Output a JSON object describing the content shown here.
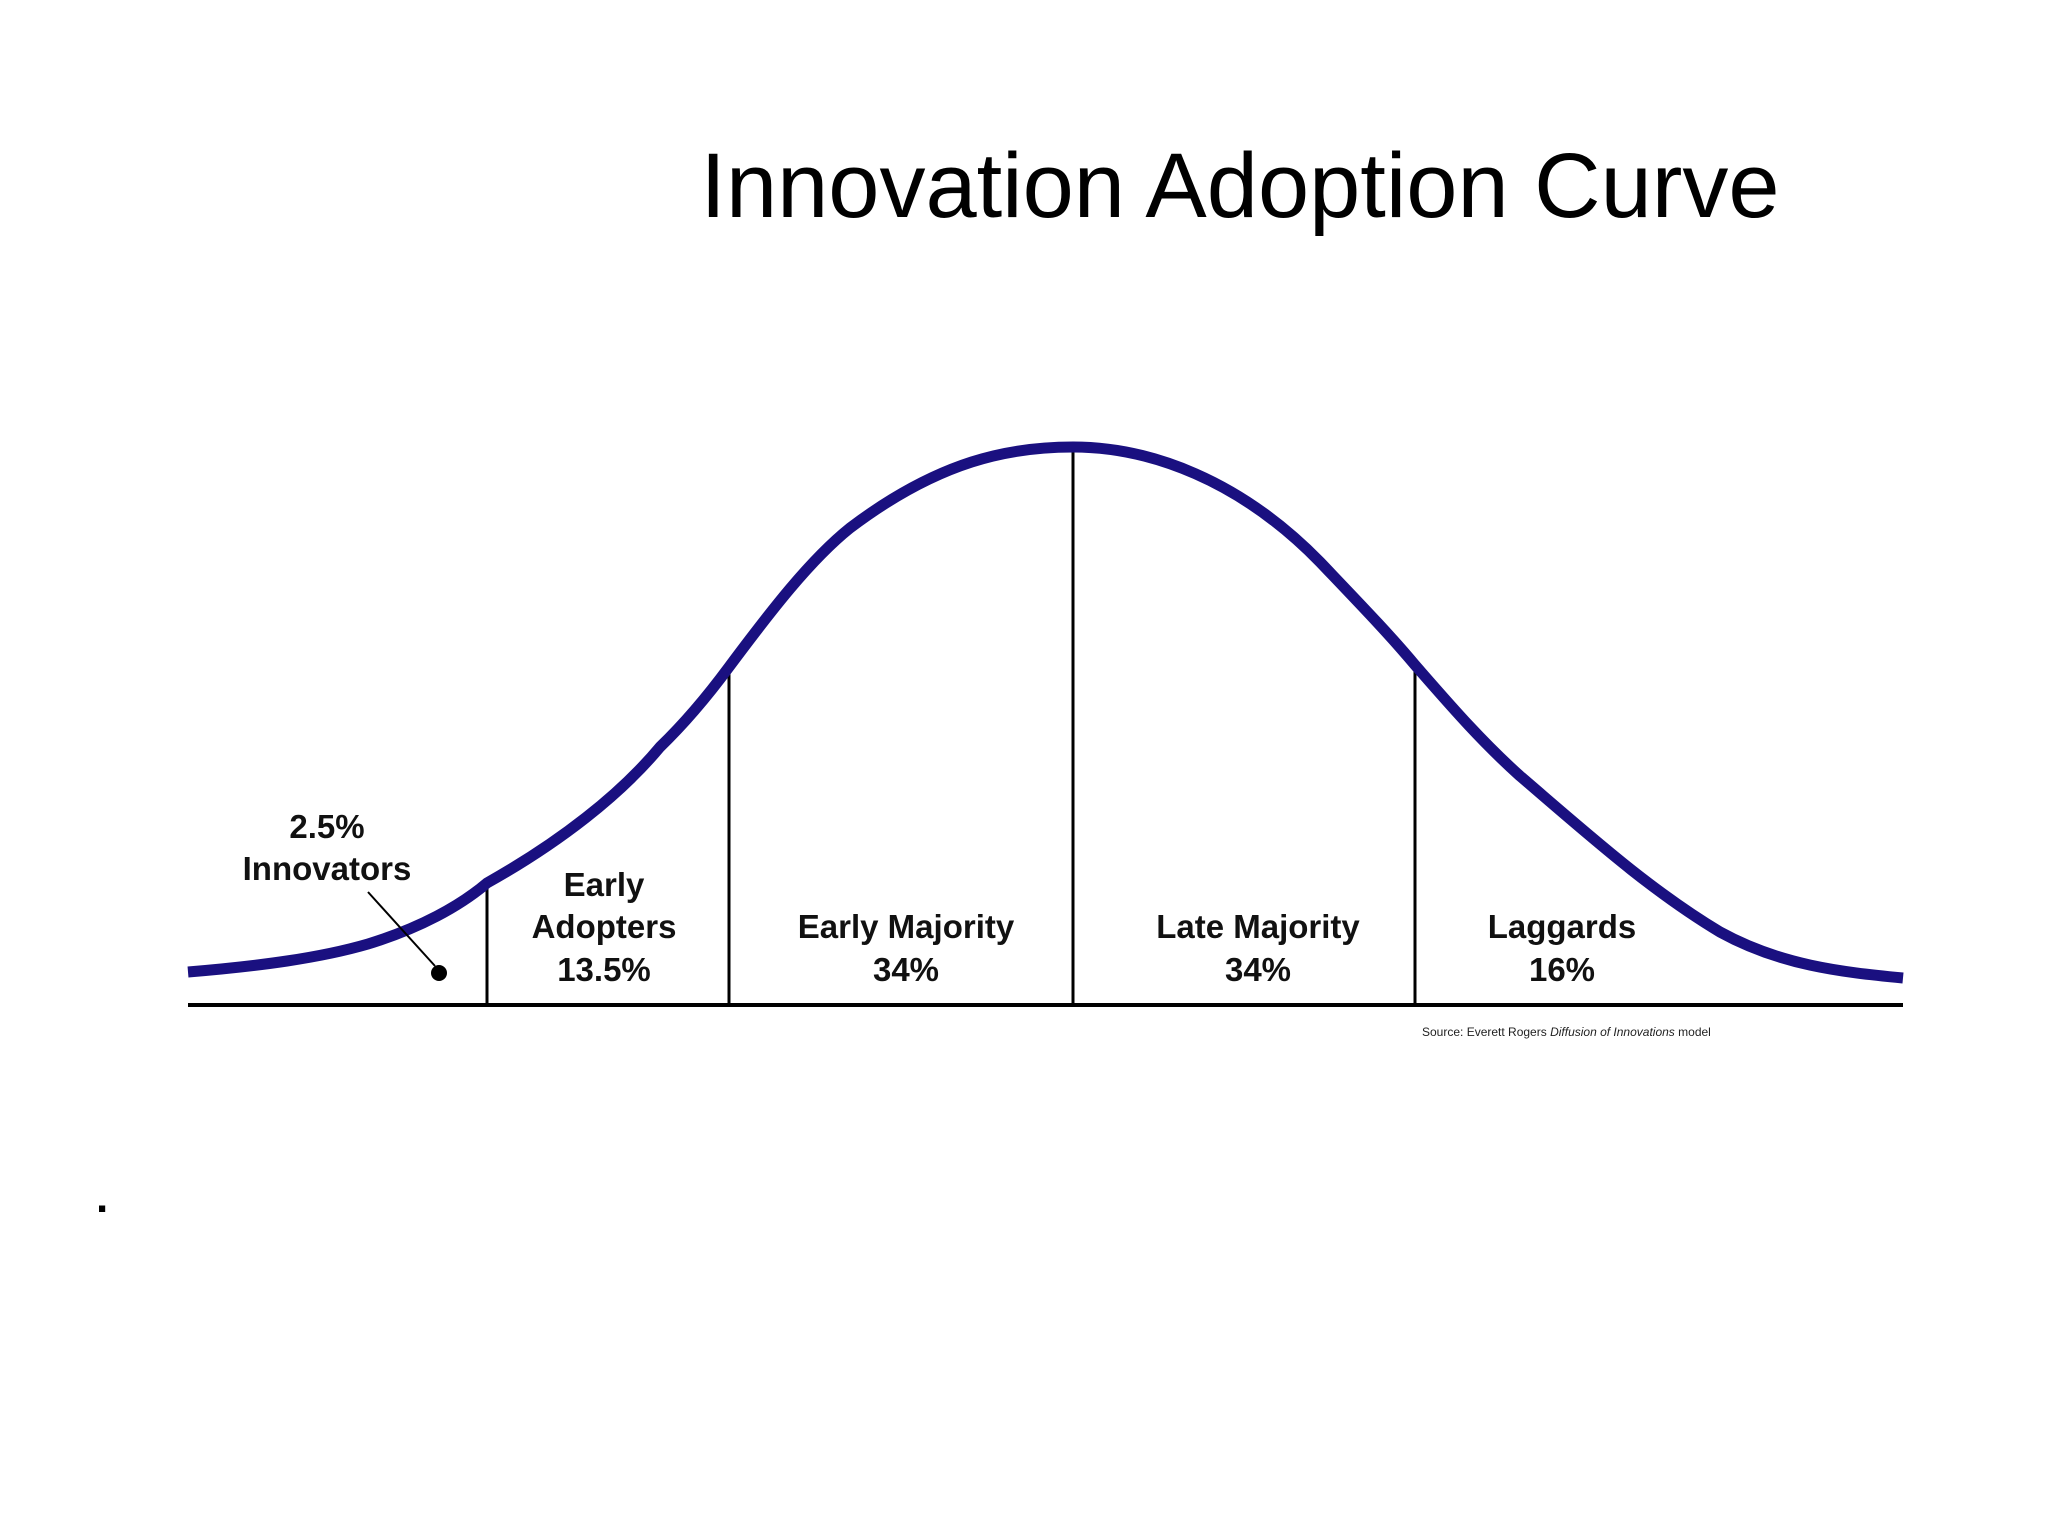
{
  "slide": {
    "title": "Innovation Adoption Curve",
    "bullet": "."
  },
  "diagram": {
    "curve_color": "#1a1080",
    "line_color": "#000000",
    "segments": [
      {
        "id": "innovators",
        "name": "Innovators",
        "percent": "2.5%"
      },
      {
        "id": "early-adopters",
        "name_line1": "Early",
        "name_line2": "Adopters",
        "percent": "13.5%"
      },
      {
        "id": "early-majority",
        "name": "Early Majority",
        "percent": "34%"
      },
      {
        "id": "late-majority",
        "name": "Late Majority",
        "percent": "34%"
      },
      {
        "id": "laggards",
        "name": "Laggards",
        "percent": "16%"
      }
    ],
    "source": {
      "prefix": "Source: Everett Rogers ",
      "work": "Diffusion of Innovations",
      "suffix": " model"
    }
  }
}
